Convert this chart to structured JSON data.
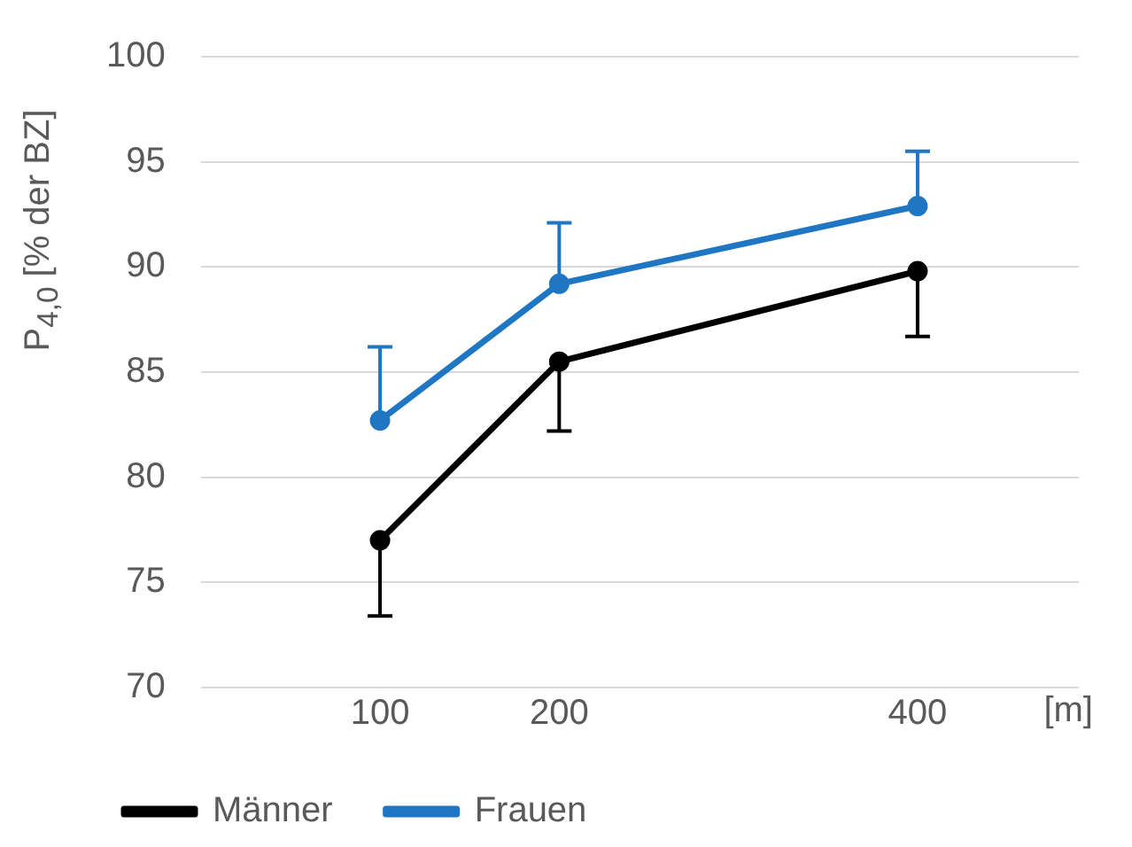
{
  "chart_data": {
    "type": "line",
    "ylabel": "P$_{4,0}$ [% der BZ]",
    "xlabel": "[m]",
    "x": [
      100,
      200,
      400
    ],
    "series": [
      {
        "name": "Männer",
        "color": "#000000",
        "values": [
          77,
          85.5,
          89.8
        ],
        "errors": [
          [
            73.4,
            77
          ],
          [
            82.2,
            85.5
          ],
          [
            86.7,
            89.8
          ]
        ]
      },
      {
        "name": "Frauen",
        "color": "#1f77c4",
        "values": [
          82.7,
          89.2,
          92.9
        ],
        "errors": [
          [
            82.7,
            86.2
          ],
          [
            89.2,
            92.1
          ],
          [
            92.9,
            95.5
          ]
        ]
      }
    ],
    "xlim": [
      0,
      490
    ],
    "xticks": [
      100,
      200,
      400
    ],
    "ylim": [
      70,
      100
    ],
    "yticks": [
      70,
      75,
      80,
      85,
      90,
      95,
      100
    ],
    "grid": "y",
    "legend": "bottom left",
    "marker": "circle",
    "line_style": "solid"
  }
}
